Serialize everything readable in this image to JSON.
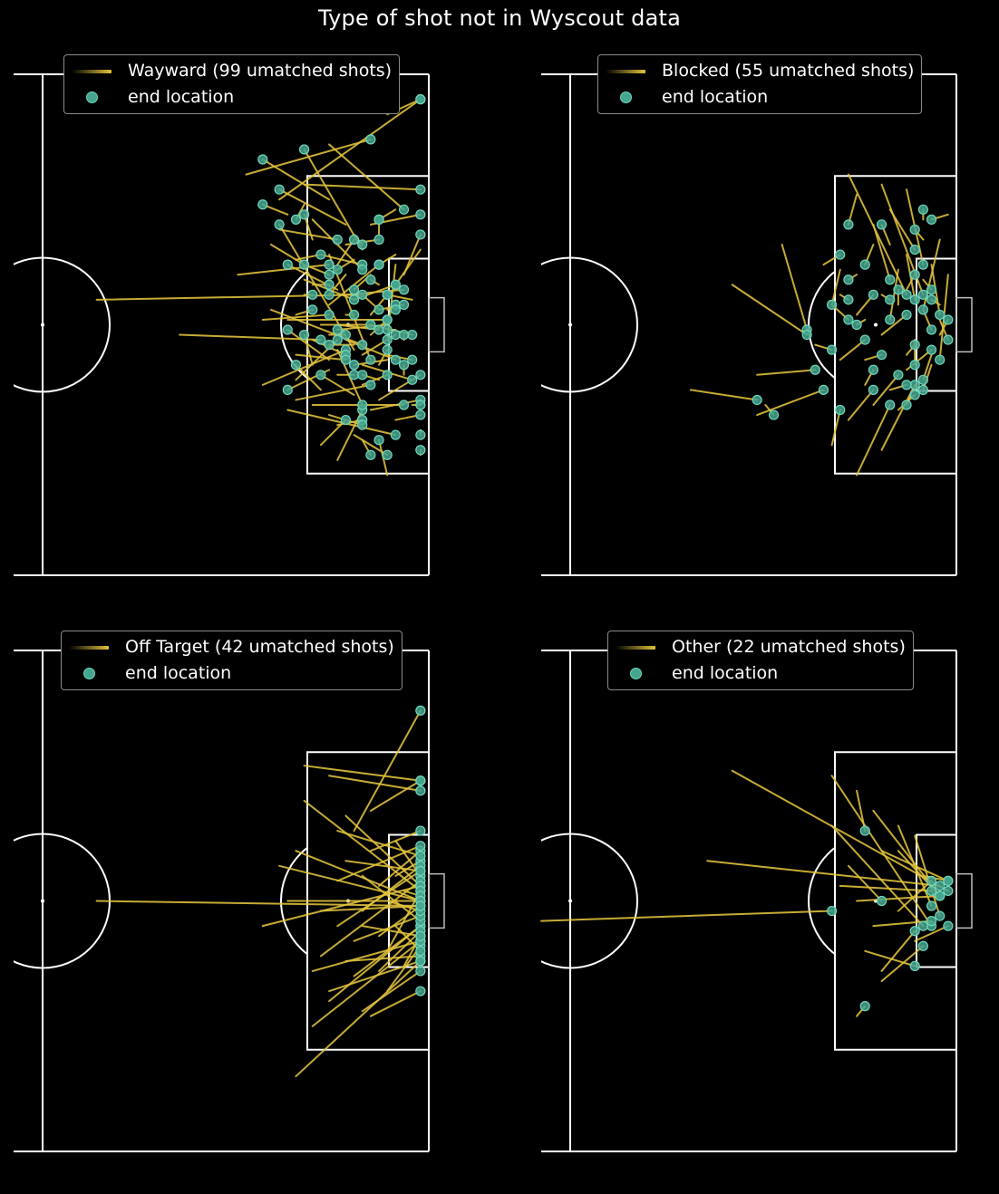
{
  "figure": {
    "title": "Type of shot not in Wyscout data",
    "colors": {
      "background": "#000000",
      "pitch_lines": "#ffffff",
      "shot_line": "#e1c33c",
      "end_marker": "#45a58f",
      "end_marker_edge": "#6dd6bb"
    }
  },
  "chart_data": [
    {
      "type": "scatter",
      "series_name": "Wayward (99 umatched shots)",
      "marker_label": "end location",
      "legend_position": "upper center",
      "pitch": {
        "x_range": [
          50,
          100
        ],
        "y_range": [
          0,
          100
        ],
        "x_units": "pitch %",
        "y_units": "pitch %"
      },
      "shots": [
        [
          82,
          25,
          99,
          5
        ],
        [
          88,
          14,
          97,
          27
        ],
        [
          95,
          8,
          99,
          5
        ],
        [
          78,
          20,
          93,
          13
        ],
        [
          85,
          22,
          99,
          23
        ],
        [
          77,
          40,
          88,
          38
        ],
        [
          60,
          45,
          92,
          44
        ],
        [
          83,
          28,
          80,
          26
        ],
        [
          90,
          30,
          82,
          23
        ],
        [
          92,
          35,
          85,
          15
        ],
        [
          97,
          40,
          99,
          32
        ],
        [
          96,
          38,
          95,
          53
        ],
        [
          85,
          41,
          91,
          45
        ],
        [
          88,
          46,
          94,
          38
        ],
        [
          95,
          50,
          89,
          51
        ],
        [
          91,
          54,
          88,
          54
        ],
        [
          95,
          56,
          98,
          57
        ],
        [
          86,
          58,
          85,
          52
        ],
        [
          70,
          52,
          87,
          53
        ],
        [
          80,
          62,
          90,
          55
        ],
        [
          92,
          58,
          98,
          61
        ],
        [
          84,
          65,
          93,
          62
        ],
        [
          93,
          67,
          99,
          65
        ],
        [
          91,
          72,
          95,
          76
        ],
        [
          83,
          67,
          96,
          72
        ],
        [
          94,
          65,
          99,
          60
        ],
        [
          89,
          70,
          92,
          69
        ],
        [
          84,
          48,
          86,
          47
        ],
        [
          90,
          44,
          97,
          43
        ],
        [
          93,
          48,
          95,
          44
        ],
        [
          86,
          33,
          85,
          28
        ],
        [
          88,
          25,
          80,
          17
        ],
        [
          96,
          27,
          94,
          29
        ],
        [
          88,
          57,
          83,
          51
        ],
        [
          89,
          60,
          91,
          60
        ],
        [
          95,
          47,
          96,
          46
        ],
        [
          85,
          38,
          88,
          40
        ],
        [
          87,
          50,
          93,
          50
        ],
        [
          86,
          53,
          90,
          56
        ],
        [
          84,
          61,
          89,
          53
        ],
        [
          91,
          37,
          89,
          39
        ],
        [
          94,
          42,
          93,
          41
        ],
        [
          92,
          62,
          95,
          60
        ],
        [
          96,
          69,
          99,
          68
        ],
        [
          99,
          71,
          99,
          72
        ],
        [
          89,
          77,
          92,
          67
        ],
        [
          99,
          76,
          99,
          75
        ],
        [
          95,
          80,
          94,
          73
        ],
        [
          98,
          66,
          99,
          66
        ],
        [
          93,
          40,
          91,
          43
        ],
        [
          92,
          56,
          96,
          52
        ],
        [
          90,
          48,
          91,
          48
        ],
        [
          87,
          74,
          90,
          69
        ],
        [
          89,
          43,
          83,
          38
        ],
        [
          91,
          55,
          82,
          30
        ],
        [
          96,
          46,
          96,
          47
        ],
        [
          93,
          52,
          95,
          49
        ],
        [
          82,
          31,
          89,
          33
        ],
        [
          81,
          34,
          85,
          38
        ],
        [
          87,
          36,
          92,
          38
        ],
        [
          85,
          26,
          84,
          29
        ],
        [
          94,
          32,
          94,
          29
        ],
        [
          88,
          59,
          83,
          63
        ],
        [
          87,
          63,
          84,
          58
        ],
        [
          92,
          73,
          93,
          76
        ],
        [
          93,
          30,
          99,
          28
        ],
        [
          81,
          47,
          92,
          54
        ],
        [
          86,
          66,
          97,
          66
        ],
        [
          89,
          50,
          94,
          51
        ],
        [
          94,
          58,
          95,
          55
        ],
        [
          90,
          34,
          94,
          33
        ],
        [
          97,
          60,
          97,
          58
        ],
        [
          90,
          53,
          96,
          57
        ],
        [
          84,
          56,
          90,
          57
        ],
        [
          86,
          42,
          88,
          42
        ],
        [
          83,
          49,
          95,
          49
        ],
        [
          95,
          57,
          91,
          58
        ],
        [
          88,
          68,
          92,
          70
        ],
        [
          93,
          50,
          98,
          52
        ],
        [
          98,
          45,
          95,
          44
        ],
        [
          90,
          40,
          88,
          44
        ],
        [
          85,
          44,
          86,
          44
        ],
        [
          99,
          35,
          96,
          42
        ],
        [
          96,
          51,
          95,
          51
        ],
        [
          91,
          64,
          87,
          60
        ],
        [
          96,
          36,
          94,
          38
        ],
        [
          80,
          49,
          88,
          48
        ],
        [
          88,
          36,
          93,
          57
        ],
        [
          94,
          47,
          97,
          46
        ],
        [
          86,
          29,
          92,
          39
        ],
        [
          91,
          45,
          96,
          42
        ],
        [
          89,
          55,
          92,
          66
        ],
        [
          94,
          61,
          92,
          60
        ],
        [
          91,
          32,
          92,
          34
        ],
        [
          97,
          53,
          97,
          52
        ],
        [
          84,
          37,
          87,
          36
        ],
        [
          89,
          38,
          91,
          33
        ],
        [
          92,
          44,
          94,
          47
        ],
        [
          88,
          52,
          90,
          52
        ]
      ]
    },
    {
      "type": "scatter",
      "series_name": "Blocked (55 umatched shots)",
      "marker_label": "end location",
      "legend_position": "upper center",
      "pitch": {
        "x_range": [
          50,
          100
        ],
        "y_range": [
          0,
          100
        ],
        "x_units": "pitch %",
        "y_units": "pitch %"
      },
      "shots": [
        [
          79,
          34,
          82,
          51
        ],
        [
          73,
          42,
          82,
          52
        ],
        [
          87,
          20,
          94,
          44
        ],
        [
          91,
          22,
          96,
          44
        ],
        [
          94,
          23,
          96,
          38
        ],
        [
          99,
          28,
          97,
          29
        ],
        [
          98,
          33,
          96,
          47
        ],
        [
          76,
          60,
          83,
          59
        ],
        [
          76,
          68,
          84,
          63
        ],
        [
          68,
          63,
          76,
          65
        ],
        [
          77,
          66,
          78,
          68
        ],
        [
          88,
          24,
          87,
          30
        ],
        [
          90,
          30,
          92,
          41
        ],
        [
          94,
          36,
          95,
          45
        ],
        [
          97,
          38,
          98,
          48
        ],
        [
          93,
          39,
          92,
          49
        ],
        [
          92,
          27,
          95,
          35
        ],
        [
          96,
          41,
          97,
          43
        ],
        [
          98,
          49,
          99,
          53
        ],
        [
          99,
          40,
          98,
          57
        ],
        [
          85,
          46,
          87,
          49
        ],
        [
          88,
          48,
          90,
          44
        ],
        [
          91,
          52,
          94,
          48
        ],
        [
          94,
          56,
          95,
          54
        ],
        [
          97,
          56,
          96,
          61
        ],
        [
          95,
          62,
          94,
          66
        ],
        [
          89,
          62,
          90,
          59
        ],
        [
          86,
          57,
          89,
          53
        ],
        [
          83,
          54,
          85,
          55
        ],
        [
          87,
          69,
          90,
          63
        ],
        [
          91,
          75,
          95,
          62
        ],
        [
          88,
          80,
          92,
          66
        ],
        [
          85,
          74,
          86,
          67
        ],
        [
          94,
          59,
          97,
          55
        ],
        [
          96,
          47,
          97,
          51
        ],
        [
          98,
          52,
          99,
          49
        ],
        [
          86,
          39,
          85,
          46
        ],
        [
          90,
          34,
          89,
          38
        ],
        [
          93,
          46,
          93,
          43
        ],
        [
          96,
          33,
          95,
          31
        ],
        [
          98,
          46,
          97,
          45
        ],
        [
          89,
          57,
          91,
          56
        ],
        [
          92,
          63,
          94,
          62
        ],
        [
          84,
          38,
          86,
          36
        ],
        [
          86,
          44,
          87,
          45
        ],
        [
          89,
          49,
          88,
          50
        ],
        [
          91,
          44,
          92,
          45
        ],
        [
          93,
          67,
          95,
          64
        ],
        [
          95,
          53,
          95,
          58
        ],
        [
          90,
          66,
          93,
          60
        ],
        [
          92,
          34,
          91,
          30
        ],
        [
          88,
          40,
          87,
          41
        ],
        [
          94,
          43,
          95,
          40
        ],
        [
          96,
          29,
          96,
          27
        ],
        [
          97,
          58,
          96,
          63
        ]
      ]
    },
    {
      "type": "scatter",
      "series_name": "Off Target (42 umatched shots)",
      "marker_label": "end location",
      "legend_position": "upper center",
      "pitch": {
        "x_range": [
          50,
          100
        ],
        "y_range": [
          0,
          100
        ],
        "x_units": "pitch %",
        "y_units": "pitch %"
      },
      "shots": [
        [
          83,
          50,
          99,
          50
        ],
        [
          91,
          36,
          99,
          12
        ],
        [
          88,
          25,
          99,
          28
        ],
        [
          85,
          23,
          99,
          26
        ],
        [
          93,
          40,
          99,
          36
        ],
        [
          94,
          47,
          99,
          40
        ],
        [
          90,
          33,
          99,
          47
        ],
        [
          96,
          45,
          99,
          42
        ],
        [
          92,
          52,
          99,
          43
        ],
        [
          96,
          38,
          99,
          45
        ],
        [
          87,
          61,
          99,
          46
        ],
        [
          95,
          60,
          99,
          48
        ],
        [
          89,
          55,
          99,
          44
        ],
        [
          94,
          57,
          99,
          51
        ],
        [
          91,
          65,
          99,
          55
        ],
        [
          92,
          72,
          99,
          64
        ],
        [
          88,
          70,
          99,
          55
        ],
        [
          84,
          85,
          99,
          62
        ],
        [
          86,
          75,
          99,
          58
        ],
        [
          95,
          68,
          99,
          59
        ],
        [
          97,
          63,
          99,
          57
        ],
        [
          93,
          73,
          99,
          68
        ],
        [
          90,
          62,
          99,
          61
        ],
        [
          89,
          46,
          99,
          39
        ],
        [
          82,
          43,
          99,
          50
        ],
        [
          80,
          55,
          99,
          47
        ],
        [
          92,
          45,
          99,
          54
        ],
        [
          96,
          55,
          99,
          60
        ],
        [
          94,
          64,
          99,
          56
        ],
        [
          85,
          30,
          99,
          48
        ],
        [
          87,
          52,
          99,
          51
        ],
        [
          91,
          58,
          99,
          53
        ],
        [
          93,
          32,
          99,
          26
        ],
        [
          90,
          42,
          99,
          44
        ],
        [
          95,
          50,
          99,
          52
        ],
        [
          86,
          64,
          99,
          58
        ],
        [
          97,
          48,
          99,
          49
        ],
        [
          89,
          36,
          99,
          41
        ],
        [
          84,
          40,
          99,
          50
        ],
        [
          92,
          55,
          99,
          57
        ],
        [
          60,
          50,
          99,
          51
        ],
        [
          88,
          68,
          99,
          62
        ]
      ]
    },
    {
      "type": "scatter",
      "series_name": "Other (22 umatched shots)",
      "marker_label": "end location",
      "legend_position": "upper center",
      "pitch": {
        "x_range": [
          50,
          100
        ],
        "y_range": [
          0,
          100
        ],
        "x_units": "pitch %",
        "y_units": "pitch %"
      },
      "shots": [
        [
          50,
          54,
          85,
          52
        ],
        [
          73,
          24,
          99,
          48
        ],
        [
          70,
          42,
          98,
          47
        ],
        [
          85,
          25,
          97,
          55
        ],
        [
          85,
          35,
          96,
          55
        ],
        [
          88,
          50,
          98,
          49
        ],
        [
          90,
          55,
          97,
          54
        ],
        [
          93,
          40,
          98,
          49
        ],
        [
          93,
          35,
          97,
          51
        ],
        [
          89,
          60,
          95,
          63
        ],
        [
          91,
          64,
          95,
          56
        ],
        [
          88,
          28,
          89,
          36
        ],
        [
          87,
          43,
          91,
          50
        ],
        [
          91,
          40,
          99,
          46
        ],
        [
          96,
          45,
          99,
          46
        ],
        [
          88,
          73,
          89,
          71
        ],
        [
          91,
          66,
          96,
          59
        ],
        [
          95,
          58,
          99,
          55
        ],
        [
          90,
          32,
          98,
          49
        ],
        [
          93,
          52,
          97,
          46
        ],
        [
          86,
          47,
          97,
          48
        ],
        [
          95,
          37,
          98,
          53
        ]
      ]
    }
  ]
}
